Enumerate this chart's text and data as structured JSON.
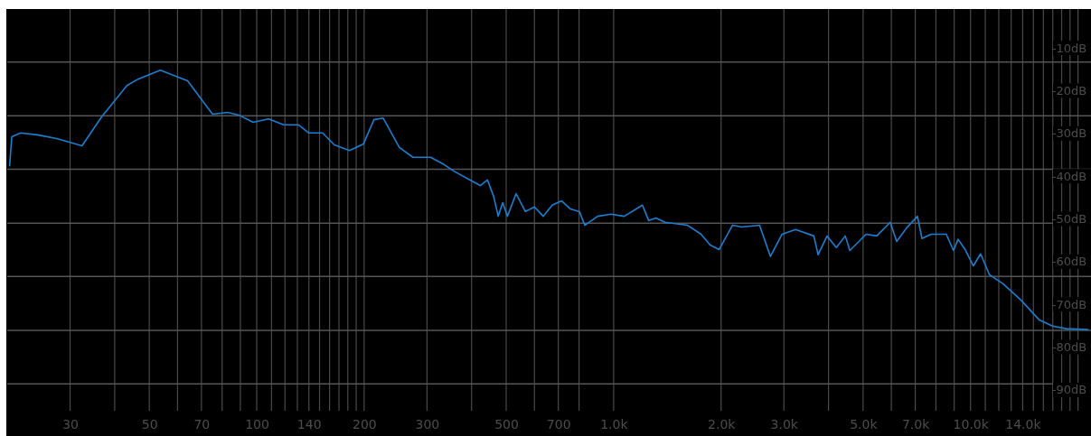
{
  "chart_data": {
    "type": "line",
    "log": "x",
    "grid": "x",
    "marker": "none",
    "line_style": "solid",
    "xlim": [
      20,
      21500
    ],
    "ylim": [
      -95,
      -1
    ],
    "xticks": [
      {
        "value": 30,
        "label": "30"
      },
      {
        "value": 40,
        "label": null
      },
      {
        "value": 50,
        "label": "50"
      },
      {
        "value": 60,
        "label": null
      },
      {
        "value": 70,
        "label": "70"
      },
      {
        "value": 80,
        "label": null
      },
      {
        "value": 90,
        "label": null
      },
      {
        "value": 100,
        "label": "100"
      },
      {
        "value": 110,
        "label": null
      },
      {
        "value": 120,
        "label": null
      },
      {
        "value": 130,
        "label": null
      },
      {
        "value": 140,
        "label": "140"
      },
      {
        "value": 150,
        "label": null
      },
      {
        "value": 160,
        "label": null
      },
      {
        "value": 170,
        "label": null
      },
      {
        "value": 180,
        "label": null
      },
      {
        "value": 190,
        "label": null
      },
      {
        "value": 200,
        "label": "200"
      },
      {
        "value": 300,
        "label": "300"
      },
      {
        "value": 400,
        "label": null
      },
      {
        "value": 500,
        "label": "500"
      },
      {
        "value": 600,
        "label": null
      },
      {
        "value": 700,
        "label": "700"
      },
      {
        "value": 800,
        "label": null
      },
      {
        "value": 1000,
        "label": "1.0k"
      },
      {
        "value": 2000,
        "label": "2.0k"
      },
      {
        "value": 3000,
        "label": "3.0k"
      },
      {
        "value": 4000,
        "label": null
      },
      {
        "value": 5000,
        "label": "5.0k"
      },
      {
        "value": 6000,
        "label": null
      },
      {
        "value": 7000,
        "label": "7.0k"
      },
      {
        "value": 8000,
        "label": null
      },
      {
        "value": 9000,
        "label": null
      },
      {
        "value": 10000,
        "label": "10.0k"
      },
      {
        "value": 11000,
        "label": null
      },
      {
        "value": 12000,
        "label": null
      },
      {
        "value": 13000,
        "label": null
      },
      {
        "value": 14000,
        "label": "14.0k"
      },
      {
        "value": 15000,
        "label": null
      },
      {
        "value": 16000,
        "label": null
      },
      {
        "value": 17000,
        "label": null
      },
      {
        "value": 18000,
        "label": null
      },
      {
        "value": 19000,
        "label": null
      },
      {
        "value": 20000,
        "label": null
      }
    ],
    "yticks": [
      {
        "value": -10,
        "label": "-10dB"
      },
      {
        "value": -20,
        "label": "-20dB"
      },
      {
        "value": -30,
        "label": "-30dB"
      },
      {
        "value": -40,
        "label": "-40dB"
      },
      {
        "value": -50,
        "label": "-50dB"
      },
      {
        "value": -60,
        "label": "-60dB"
      },
      {
        "value": -70,
        "label": "-70dB"
      },
      {
        "value": -80,
        "label": "-80dB"
      },
      {
        "value": -90,
        "label": "-90dB"
      }
    ],
    "ref_lines": [
      {
        "axis": "y",
        "value": -13.4,
        "color": "#555555"
      },
      {
        "axis": "y",
        "value": -26,
        "color": "#555555"
      },
      {
        "axis": "y",
        "value": -38.5,
        "color": "#555555"
      },
      {
        "axis": "y",
        "value": -51.1,
        "color": "#555555"
      },
      {
        "axis": "y",
        "value": -63.6,
        "color": "#555555"
      },
      {
        "axis": "y",
        "value": -76.2,
        "color": "#555555"
      },
      {
        "axis": "y",
        "value": -88.7,
        "color": "#555555"
      }
    ],
    "series": [
      {
        "color": "#1a7fd0",
        "x": [
          20.3,
          20.6,
          21.8,
          24.5,
          27.5,
          32.4,
          36.8,
          43.3,
          46.5,
          53.7,
          64,
          75.2,
          83,
          89,
          97.7,
          108,
          119,
          131,
          140,
          153,
          165,
          182,
          199,
          213,
          226,
          251,
          274,
          307,
          335,
          356,
          388,
          423,
          443,
          461,
          475,
          489,
          504,
          533,
          566,
          600,
          635,
          673,
          715,
          757,
          802,
          830,
          902,
          983,
          1071,
          1204,
          1254,
          1314,
          1393,
          1611,
          1758,
          1862,
          1974,
          2153,
          2284,
          2564,
          2749,
          2965,
          3236,
          3638,
          3741,
          3963,
          4207,
          4457,
          4590,
          4864,
          5096,
          5461,
          5957,
          6209,
          6622,
          7099,
          7311,
          7745,
          8551,
          8958,
          9226,
          9661,
          10185,
          10670,
          11302,
          12331,
          13839,
          15553,
          16982,
          18528,
          21400
        ],
        "values": [
          -37.8,
          -30.9,
          -30,
          -30.5,
          -31.3,
          -33,
          -26.2,
          -18.9,
          -17.4,
          -15.3,
          -17.8,
          -25.6,
          -25.2,
          -25.8,
          -27.5,
          -26.7,
          -28.1,
          -28.1,
          -30,
          -30,
          -32.8,
          -34.1,
          -32.6,
          -26.9,
          -26.5,
          -33.4,
          -35.7,
          -35.7,
          -37.4,
          -38.9,
          -40.6,
          -42.3,
          -41,
          -44.8,
          -49.5,
          -46.3,
          -49.5,
          -44.2,
          -48.4,
          -47.3,
          -49.5,
          -46.9,
          -45.9,
          -47.8,
          -48.4,
          -51.6,
          -49.5,
          -49,
          -49.5,
          -46.9,
          -50.5,
          -49.9,
          -50.9,
          -51.6,
          -53.7,
          -56.2,
          -57.3,
          -51.6,
          -52,
          -51.6,
          -58.9,
          -53.7,
          -52.6,
          -54.1,
          -58.5,
          -54.1,
          -56.8,
          -54.1,
          -57.5,
          -55.4,
          -53.7,
          -54.1,
          -50.9,
          -55.4,
          -52.2,
          -49.5,
          -54.7,
          -53.7,
          -53.7,
          -57.5,
          -54.9,
          -57.3,
          -61.1,
          -58.3,
          -63.2,
          -65.3,
          -69.1,
          -73.7,
          -75.2,
          -75.8,
          -76
        ]
      }
    ]
  }
}
